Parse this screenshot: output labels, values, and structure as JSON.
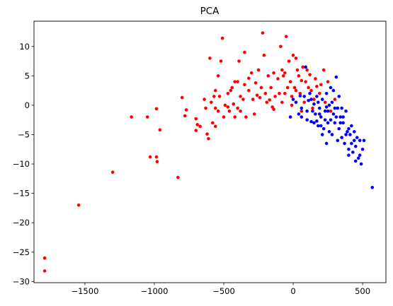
{
  "chart_data": {
    "type": "scatter",
    "title": "PCA",
    "xlim": [
      -1867,
      668
    ],
    "ylim": [
      -30.2,
      14.3
    ],
    "xticks": [
      {
        "value": -1500,
        "label": "−1500"
      },
      {
        "value": -1000,
        "label": "−1000"
      },
      {
        "value": -500,
        "label": "−500"
      },
      0,
      500
    ],
    "yticks": [
      {
        "value": -30,
        "label": "−30"
      },
      {
        "value": -25,
        "label": "−25"
      },
      {
        "value": -20,
        "label": "−20"
      },
      {
        "value": -15,
        "label": "−15"
      },
      {
        "value": -10,
        "label": "−10"
      },
      {
        "value": -5,
        "label": "−5"
      },
      0,
      5,
      10
    ],
    "series": [
      {
        "color": "#ff0000",
        "x": [
          -1790,
          -1790,
          -1545,
          -1300,
          -1165,
          -1050,
          -1030,
          -985,
          -980,
          -985,
          -960,
          -830,
          -800,
          -770,
          -780,
          -700,
          -690,
          -670,
          -700,
          -620,
          -610,
          -600,
          -580,
          -560,
          -640,
          -630,
          -590,
          -570,
          -560,
          -540,
          -510,
          -520,
          -490,
          -470,
          -460,
          -440,
          -430,
          -420,
          -400,
          -390,
          -380,
          -360,
          -350,
          -340,
          -320,
          -300,
          -290,
          -280,
          -270,
          -250,
          -240,
          -220,
          -210,
          -200,
          -190,
          -180,
          -160,
          -150,
          -140,
          -130,
          -110,
          -100,
          -90,
          -80,
          -70,
          -60,
          -50,
          -40,
          -30,
          -20,
          -10,
          0,
          10,
          20,
          30,
          40,
          50,
          60,
          70,
          80,
          90,
          100,
          110,
          120,
          130,
          140,
          150,
          160,
          170,
          190,
          200,
          220,
          230,
          250,
          270,
          300,
          -350,
          -260,
          -420,
          -400,
          -380,
          -470,
          -530,
          -540,
          -500,
          -560,
          -450,
          -320,
          -230,
          -170,
          -80,
          -140,
          -60,
          -10,
          20,
          60
        ],
        "y": [
          -26,
          -28.2,
          -17,
          -11.4,
          -2,
          -2,
          -8.8,
          -8.8,
          -9.6,
          -0.6,
          -4.2,
          -12.3,
          1.3,
          -0.8,
          -1.8,
          -2.3,
          -3.3,
          -3.6,
          -4.3,
          -4.9,
          -5.7,
          8,
          -3,
          -3.6,
          1,
          -0.5,
          0.5,
          1.5,
          2.5,
          5,
          11.4,
          7.5,
          0,
          2,
          -1,
          3,
          0.2,
          4,
          4,
          7.5,
          -1,
          1,
          9,
          -2,
          2.5,
          5.5,
          1,
          -1.5,
          3.8,
          6,
          1.3,
          12.3,
          8.5,
          2,
          0.5,
          5,
          3,
          -0.3,
          5.5,
          1.5,
          4.5,
          2,
          10,
          6,
          5,
          2,
          11.7,
          3,
          7.5,
          4,
          0,
          8.5,
          3,
          8,
          6,
          5,
          2,
          -1,
          6.5,
          0.5,
          4,
          6,
          3,
          5.2,
          2.5,
          -0.5,
          1,
          4.5,
          3.2,
          2,
          3.5,
          6,
          0.5,
          4,
          -1,
          1,
          3.5,
          1.7,
          -2,
          -0.5,
          1.5,
          -0.3,
          1.5,
          -1,
          -2,
          -0.5,
          2.5,
          4.6,
          3,
          0.9,
          0.5,
          -0.7,
          5.5,
          1.5,
          2.5,
          4.2
        ]
      },
      {
        "color": "#0000ff",
        "x": [
          -20,
          0,
          20,
          40,
          50,
          60,
          80,
          90,
          100,
          110,
          120,
          130,
          140,
          150,
          160,
          170,
          180,
          190,
          200,
          210,
          220,
          230,
          240,
          250,
          260,
          270,
          280,
          290,
          300,
          310,
          320,
          330,
          340,
          350,
          360,
          370,
          380,
          390,
          400,
          410,
          420,
          430,
          440,
          450,
          460,
          470,
          480,
          490,
          500,
          570,
          150,
          200,
          250,
          270,
          300,
          320,
          340,
          360,
          380,
          400,
          420,
          440,
          230,
          180,
          260,
          290,
          330,
          130,
          100,
          190,
          210,
          240,
          280,
          310,
          350,
          400,
          450,
          480,
          510,
          240,
          170,
          60
        ],
        "y": [
          -2,
          1,
          0.5,
          -1.5,
          1.6,
          -0.5,
          1.5,
          6.5,
          -1,
          0.8,
          2,
          -2.8,
          -1,
          0.2,
          -1.5,
          1.5,
          -3.5,
          -0.5,
          -2,
          1,
          -4,
          -1,
          2,
          -3,
          0,
          -2.5,
          -5,
          -1.5,
          -3,
          4.8,
          -0.5,
          -4,
          -2,
          -5.5,
          -3,
          -6.5,
          -1,
          -4.5,
          -7.5,
          -5,
          -3.5,
          -8,
          -6,
          -7,
          -5.5,
          -9,
          -6,
          -10,
          -7.5,
          -14,
          -3,
          -3.5,
          -1,
          3,
          -0.5,
          -6,
          -3,
          -2,
          -5,
          -4,
          -6.5,
          -4.5,
          -2.5,
          0.5,
          -4.5,
          2.5,
          1.5,
          1,
          -2.5,
          -1.5,
          -5,
          -0.3,
          0.5,
          -2,
          -0.5,
          -8.5,
          -9.5,
          -8.5,
          -6,
          -6.5,
          -2.7,
          -2
        ]
      }
    ]
  }
}
